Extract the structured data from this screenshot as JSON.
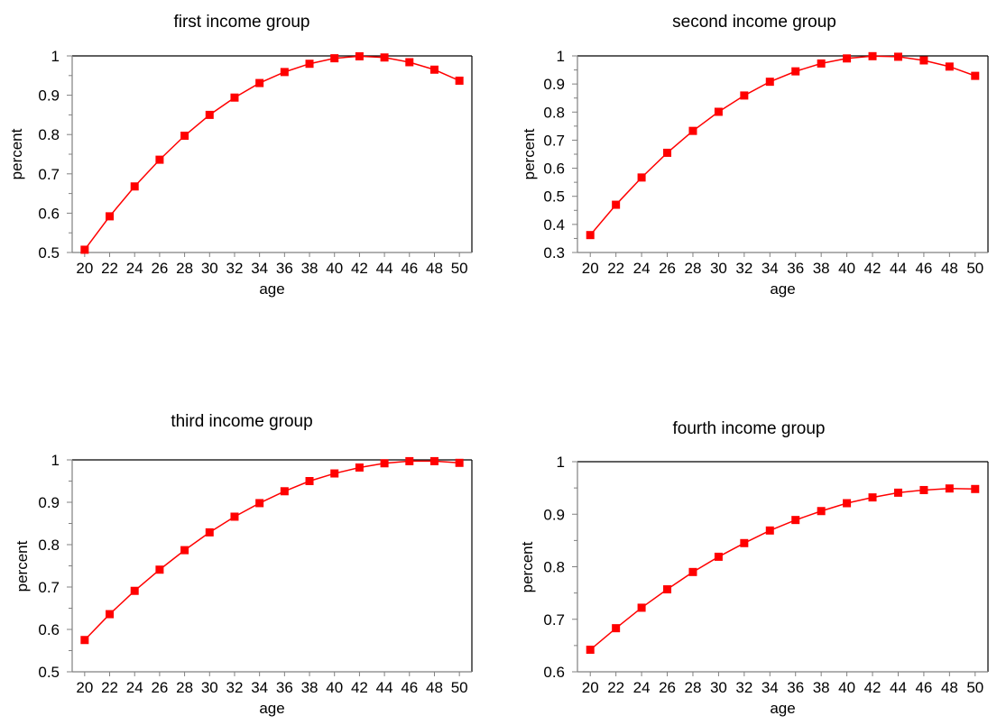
{
  "colors": {
    "series": "#ff0000",
    "axis": "#000000",
    "background": "#ffffff"
  },
  "chart_data": [
    {
      "type": "line",
      "title": "first income group",
      "xlabel": "age",
      "ylabel": "percent",
      "x": [
        20,
        22,
        24,
        26,
        28,
        30,
        32,
        34,
        36,
        38,
        40,
        42,
        44,
        46,
        48,
        50
      ],
      "x_tick_labels": [
        "20",
        "22",
        "24",
        "26",
        "28",
        "30",
        "32",
        "34",
        "36",
        "38",
        "40",
        "42",
        "44",
        "46",
        "48",
        "50"
      ],
      "xlim": [
        19,
        51
      ],
      "ylim": [
        0.5,
        1
      ],
      "y_ticks": [
        0.5,
        0.6,
        0.7,
        0.8,
        0.9,
        1
      ],
      "y_tick_labels": [
        "0.5",
        "0.6",
        "0.7",
        "0.8",
        "0.9",
        "1"
      ],
      "series": [
        {
          "values": [
            0.507,
            0.592,
            0.668,
            0.736,
            0.797,
            0.85,
            0.894,
            0.931,
            0.959,
            0.98,
            0.994,
            0.999,
            0.996,
            0.984,
            0.965,
            0.937
          ]
        }
      ],
      "marker": "square",
      "grid": false
    },
    {
      "type": "line",
      "title": "second income group",
      "xlabel": "age",
      "ylabel": "percent",
      "x": [
        20,
        22,
        24,
        26,
        28,
        30,
        32,
        34,
        36,
        38,
        40,
        42,
        44,
        46,
        48,
        50
      ],
      "x_tick_labels": [
        "20",
        "22",
        "24",
        "26",
        "28",
        "30",
        "32",
        "34",
        "36",
        "38",
        "40",
        "42",
        "44",
        "46",
        "48",
        "50"
      ],
      "xlim": [
        19,
        51
      ],
      "ylim": [
        0.3,
        1
      ],
      "y_ticks": [
        0.3,
        0.4,
        0.5,
        0.6,
        0.7,
        0.8,
        0.9,
        1
      ],
      "y_tick_labels": [
        "0.3",
        "0.4",
        "0.5",
        "0.6",
        "0.7",
        "0.8",
        "0.9",
        "1"
      ],
      "series": [
        {
          "values": [
            0.362,
            0.47,
            0.567,
            0.655,
            0.733,
            0.801,
            0.859,
            0.908,
            0.945,
            0.973,
            0.991,
            0.999,
            0.997,
            0.984,
            0.962,
            0.929
          ]
        }
      ],
      "marker": "square",
      "grid": false
    },
    {
      "type": "line",
      "title": "third income group",
      "xlabel": "age",
      "ylabel": "percent",
      "x": [
        20,
        22,
        24,
        26,
        28,
        30,
        32,
        34,
        36,
        38,
        40,
        42,
        44,
        46,
        48,
        50
      ],
      "x_tick_labels": [
        "20",
        "22",
        "24",
        "26",
        "28",
        "30",
        "32",
        "34",
        "36",
        "38",
        "40",
        "42",
        "44",
        "46",
        "48",
        "50"
      ],
      "xlim": [
        19,
        51
      ],
      "ylim": [
        0.5,
        1
      ],
      "y_ticks": [
        0.5,
        0.6,
        0.7,
        0.8,
        0.9,
        1
      ],
      "y_tick_labels": [
        "0.5",
        "0.6",
        "0.7",
        "0.8",
        "0.9",
        "1"
      ],
      "series": [
        {
          "values": [
            0.575,
            0.636,
            0.691,
            0.741,
            0.787,
            0.829,
            0.866,
            0.898,
            0.926,
            0.95,
            0.968,
            0.982,
            0.992,
            0.997,
            0.997,
            0.993
          ]
        }
      ],
      "marker": "square",
      "grid": false
    },
    {
      "type": "line",
      "title": "fourth income group",
      "xlabel": "age",
      "ylabel": "percent",
      "x": [
        20,
        22,
        24,
        26,
        28,
        30,
        32,
        34,
        36,
        38,
        40,
        42,
        44,
        46,
        48,
        50
      ],
      "x_tick_labels": [
        "20",
        "22",
        "24",
        "26",
        "28",
        "30",
        "32",
        "34",
        "36",
        "38",
        "40",
        "42",
        "44",
        "46",
        "48",
        "50"
      ],
      "xlim": [
        19,
        51
      ],
      "ylim": [
        0.6,
        1
      ],
      "y_ticks": [
        0.6,
        0.7,
        0.8,
        0.9,
        1
      ],
      "y_tick_labels": [
        "0.6",
        "0.7",
        "0.8",
        "0.9",
        "1"
      ],
      "series": [
        {
          "values": [
            0.642,
            0.683,
            0.722,
            0.757,
            0.79,
            0.819,
            0.845,
            0.869,
            0.889,
            0.906,
            0.921,
            0.932,
            0.941,
            0.946,
            0.949,
            0.948
          ]
        }
      ],
      "marker": "square",
      "grid": false
    }
  ]
}
